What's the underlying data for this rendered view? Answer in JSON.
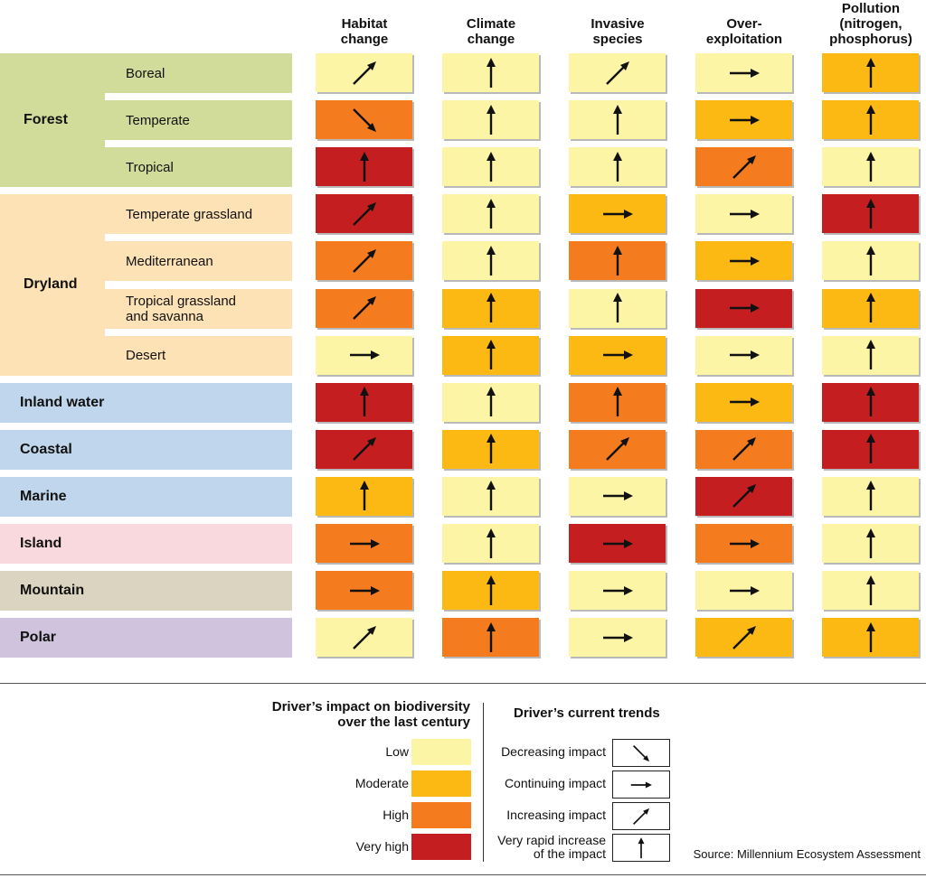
{
  "chart_data": {
    "type": "table",
    "columns": [
      "Habitat\nchange",
      "Climate\nchange",
      "Invasive\nspecies",
      "Over-\nexploitation",
      "Pollution\n(nitrogen,\nphosphorus)"
    ],
    "groups": [
      {
        "name": "Forest",
        "color": "#d2dc9a",
        "rows": [
          {
            "label": "Boreal",
            "impact": [
              "low",
              "low",
              "low",
              "low",
              "moderate"
            ],
            "trend": [
              "increasing",
              "very_rapid",
              "increasing",
              "continuing",
              "very_rapid"
            ]
          },
          {
            "label": "Temperate",
            "impact": [
              "high",
              "low",
              "low",
              "moderate",
              "moderate"
            ],
            "trend": [
              "decreasing",
              "very_rapid",
              "very_rapid",
              "continuing",
              "very_rapid"
            ]
          },
          {
            "label": "Tropical",
            "impact": [
              "very_high",
              "low",
              "low",
              "high",
              "low"
            ],
            "trend": [
              "very_rapid",
              "very_rapid",
              "very_rapid",
              "increasing",
              "very_rapid"
            ]
          }
        ]
      },
      {
        "name": "Dryland",
        "color": "#fde2b6",
        "rows": [
          {
            "label": "Temperate grassland",
            "impact": [
              "very_high",
              "low",
              "moderate",
              "low",
              "very_high"
            ],
            "trend": [
              "increasing",
              "very_rapid",
              "continuing",
              "continuing",
              "very_rapid"
            ]
          },
          {
            "label": "Mediterranean",
            "impact": [
              "high",
              "low",
              "high",
              "moderate",
              "low"
            ],
            "trend": [
              "increasing",
              "very_rapid",
              "very_rapid",
              "continuing",
              "very_rapid"
            ]
          },
          {
            "label": "Tropical grassland\nand savanna",
            "impact": [
              "high",
              "moderate",
              "low",
              "very_high",
              "moderate"
            ],
            "trend": [
              "increasing",
              "very_rapid",
              "very_rapid",
              "continuing",
              "very_rapid"
            ]
          },
          {
            "label": "Desert",
            "impact": [
              "low",
              "moderate",
              "moderate",
              "low",
              "low"
            ],
            "trend": [
              "continuing",
              "very_rapid",
              "continuing",
              "continuing",
              "very_rapid"
            ]
          }
        ]
      },
      {
        "name": "Inland water",
        "color": "#c0d6ec",
        "rows": [
          {
            "label": "",
            "impact": [
              "very_high",
              "low",
              "high",
              "moderate",
              "very_high"
            ],
            "trend": [
              "very_rapid",
              "very_rapid",
              "very_rapid",
              "continuing",
              "very_rapid"
            ]
          }
        ]
      },
      {
        "name": "Coastal",
        "color": "#c0d6ec",
        "rows": [
          {
            "label": "",
            "impact": [
              "very_high",
              "moderate",
              "high",
              "high",
              "very_high"
            ],
            "trend": [
              "increasing",
              "very_rapid",
              "increasing",
              "increasing",
              "very_rapid"
            ]
          }
        ]
      },
      {
        "name": "Marine",
        "color": "#c0d6ec",
        "rows": [
          {
            "label": "",
            "impact": [
              "moderate",
              "low",
              "low",
              "very_high",
              "low"
            ],
            "trend": [
              "very_rapid",
              "very_rapid",
              "continuing",
              "increasing",
              "very_rapid"
            ]
          }
        ]
      },
      {
        "name": "Island",
        "color": "#f9d9de",
        "rows": [
          {
            "label": "",
            "impact": [
              "high",
              "low",
              "very_high",
              "high",
              "low"
            ],
            "trend": [
              "continuing",
              "very_rapid",
              "continuing",
              "continuing",
              "very_rapid"
            ]
          }
        ]
      },
      {
        "name": "Mountain",
        "color": "#dbd4c0",
        "rows": [
          {
            "label": "",
            "impact": [
              "high",
              "moderate",
              "low",
              "low",
              "low"
            ],
            "trend": [
              "continuing",
              "very_rapid",
              "continuing",
              "continuing",
              "very_rapid"
            ]
          }
        ]
      },
      {
        "name": "Polar",
        "color": "#d0c3de",
        "rows": [
          {
            "label": "",
            "impact": [
              "low",
              "high",
              "low",
              "moderate",
              "moderate"
            ],
            "trend": [
              "increasing",
              "very_rapid",
              "continuing",
              "increasing",
              "very_rapid"
            ]
          }
        ]
      }
    ],
    "impact_colors": {
      "low": "#fdf5a6",
      "moderate": "#fdb913",
      "high": "#f47c1f",
      "very_high": "#c41e21"
    }
  },
  "legend": {
    "impact_title": "Driver’s impact on biodiversity\nover the last century",
    "impact_items": [
      {
        "key": "low",
        "label": "Low"
      },
      {
        "key": "moderate",
        "label": "Moderate"
      },
      {
        "key": "high",
        "label": "High"
      },
      {
        "key": "very_high",
        "label": "Very high"
      }
    ],
    "trend_title": "Driver’s current trends",
    "trend_items": [
      {
        "key": "decreasing",
        "label": "Decreasing impact"
      },
      {
        "key": "continuing",
        "label": "Continuing impact"
      },
      {
        "key": "increasing",
        "label": "Increasing impact"
      },
      {
        "key": "very_rapid",
        "label": "Very rapid increase\nof the impact"
      }
    ]
  },
  "source": "Source: Millennium Ecosystem Assessment"
}
